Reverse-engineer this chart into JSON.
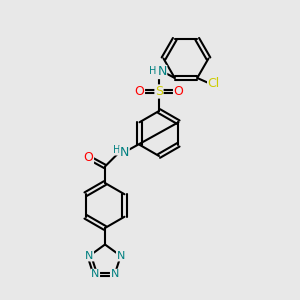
{
  "bg_color": "#e8e8e8",
  "bond_color": "#000000",
  "lw": 1.5,
  "colors": {
    "C": "#000000",
    "N": "#008080",
    "O": "#ff0000",
    "S": "#cccc00",
    "Cl": "#cccc00",
    "H": "#008080"
  },
  "fs": 9,
  "fs_small": 8
}
